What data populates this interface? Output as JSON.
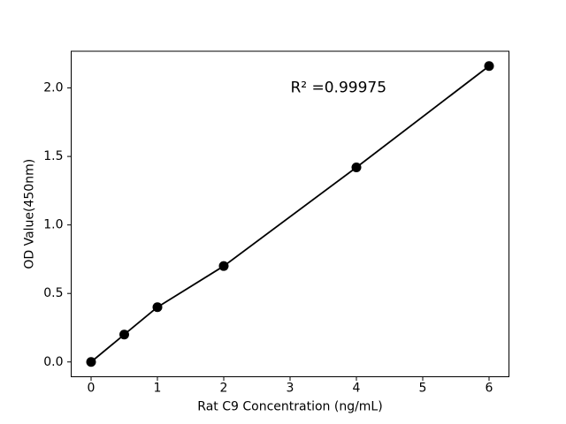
{
  "chart_data": {
    "type": "scatter",
    "title": "",
    "xlabel": "Rat C9 Concentration (ng/mL)",
    "ylabel": "OD Value(450nm)",
    "x": [
      0,
      0.5,
      1,
      2,
      4,
      6
    ],
    "y": [
      0.0,
      0.2,
      0.4,
      0.7,
      1.42,
      2.16
    ],
    "xlim": [
      -0.3,
      6.3
    ],
    "ylim": [
      -0.108,
      2.268
    ],
    "xticks": [
      0,
      1,
      2,
      3,
      4,
      5,
      6
    ],
    "xtick_labels": [
      "0",
      "1",
      "2",
      "3",
      "4",
      "5",
      "6"
    ],
    "yticks": [
      0.0,
      0.5,
      1.0,
      1.5,
      2.0
    ],
    "ytick_labels": [
      "0.0",
      "0.5",
      "1.0",
      "1.5",
      "2.0"
    ],
    "grid": false,
    "legend": "none",
    "line_color": "#000000",
    "marker_color": "#000000",
    "axis_color": "#000000",
    "background_color": "#ffffff",
    "annotation": {
      "text": "R² =0.99975",
      "x": 3.73,
      "y": 2.0
    }
  }
}
